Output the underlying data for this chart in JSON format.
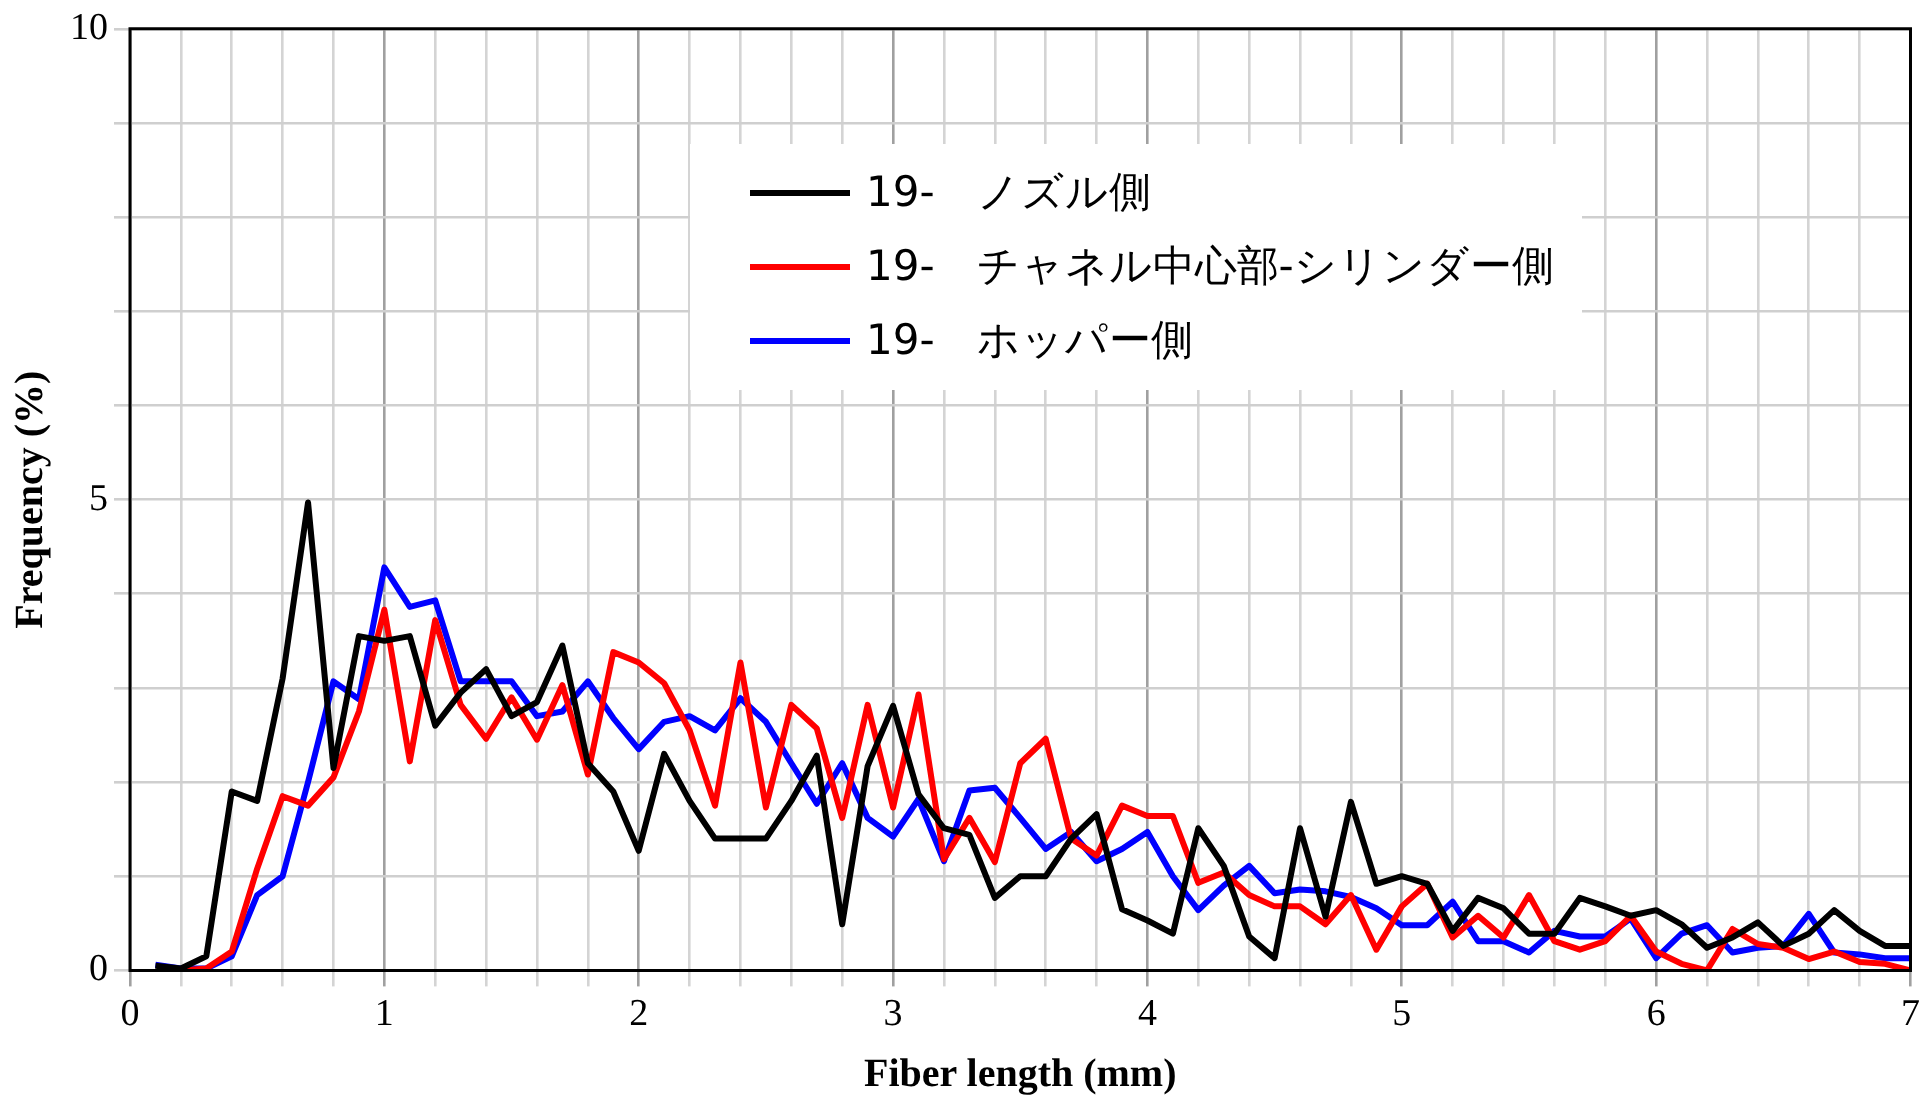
{
  "chart_data": {
    "type": "line",
    "xlabel": "Fiber length (mm)",
    "ylabel": "Frequency (%)",
    "x": [
      0.1,
      0.2,
      0.3,
      0.4,
      0.5,
      0.6,
      0.7,
      0.8,
      0.9,
      1.0,
      1.1,
      1.2,
      1.3,
      1.4,
      1.5,
      1.6,
      1.7,
      1.8,
      1.9,
      2.0,
      2.1,
      2.2,
      2.3,
      2.4,
      2.5,
      2.6,
      2.7,
      2.8,
      2.9,
      3.0,
      3.1,
      3.2,
      3.3,
      3.4,
      3.5,
      3.6,
      3.7,
      3.8,
      3.9,
      4.0,
      4.1,
      4.2,
      4.3,
      4.4,
      4.5,
      4.6,
      4.7,
      4.8,
      4.9,
      5.0,
      5.1,
      5.2,
      5.3,
      5.4,
      5.5,
      5.6,
      5.7,
      5.8,
      5.9,
      6.0,
      6.1,
      6.2,
      6.3,
      6.4,
      6.5,
      6.6,
      6.7,
      6.8,
      6.9,
      7.0
    ],
    "series": [
      {
        "name": "19-　ノズル側",
        "color": "#000000",
        "values": [
          0.05,
          0.02,
          0.15,
          1.9,
          1.8,
          3.1,
          4.97,
          2.15,
          3.55,
          3.5,
          3.55,
          2.6,
          2.95,
          3.2,
          2.7,
          2.85,
          3.45,
          2.2,
          1.9,
          1.27,
          2.3,
          1.8,
          1.4,
          1.4,
          1.4,
          1.8,
          2.28,
          0.49,
          2.17,
          2.81,
          1.87,
          1.51,
          1.44,
          0.77,
          1.0,
          1.0,
          1.4,
          1.66,
          0.65,
          0.53,
          0.39,
          1.51,
          1.11,
          0.36,
          0.13,
          1.51,
          0.57,
          1.79,
          0.92,
          1.0,
          0.92,
          0.42,
          0.77,
          0.66,
          0.39,
          0.39,
          0.77,
          0.68,
          0.58,
          0.64,
          0.49,
          0.24,
          0.35,
          0.51,
          0.26,
          0.39,
          0.64,
          0.42,
          0.26,
          0.26
        ]
      },
      {
        "name": "19-　チャネル中心部-シリンダー側",
        "color": "#ff0000",
        "values": [
          null,
          0.0,
          0.02,
          0.2,
          1.08,
          1.85,
          1.75,
          2.05,
          2.75,
          3.83,
          2.22,
          3.72,
          2.82,
          2.46,
          2.9,
          2.45,
          3.03,
          2.08,
          3.38,
          3.27,
          3.05,
          2.55,
          1.75,
          3.27,
          1.73,
          2.82,
          2.57,
          1.62,
          2.82,
          1.73,
          2.93,
          1.18,
          1.62,
          1.15,
          2.2,
          2.46,
          1.4,
          1.22,
          1.75,
          1.64,
          1.64,
          0.93,
          1.04,
          0.8,
          0.68,
          0.68,
          0.49,
          0.8,
          0.22,
          0.68,
          0.92,
          0.35,
          0.58,
          0.35,
          0.8,
          0.31,
          0.22,
          0.31,
          0.58,
          0.2,
          0.07,
          0.0,
          0.44,
          0.28,
          0.24,
          0.12,
          0.2,
          0.09,
          0.07,
          0.0
        ]
      },
      {
        "name": "19-　ホッパー側",
        "color": "#0000ff",
        "values": [
          0.06,
          0.02,
          0.02,
          0.15,
          0.8,
          1.0,
          2.0,
          3.07,
          2.88,
          4.28,
          3.86,
          3.93,
          3.07,
          3.07,
          3.07,
          2.7,
          2.75,
          3.07,
          2.68,
          2.35,
          2.64,
          2.7,
          2.55,
          2.89,
          2.64,
          2.2,
          1.77,
          2.2,
          1.62,
          1.42,
          1.82,
          1.16,
          1.91,
          1.94,
          1.62,
          1.29,
          1.47,
          1.16,
          1.29,
          1.47,
          1.0,
          0.64,
          0.9,
          1.11,
          0.82,
          0.86,
          0.84,
          0.78,
          0.66,
          0.48,
          0.48,
          0.73,
          0.31,
          0.31,
          0.19,
          0.42,
          0.36,
          0.36,
          0.55,
          0.13,
          0.39,
          0.48,
          0.19,
          0.24,
          0.26,
          0.6,
          0.19,
          0.17,
          0.13,
          0.13
        ]
      }
    ],
    "xlim": [
      0,
      7
    ],
    "xticks": [
      0,
      {
        "value": 0.2,
        "label": null
      },
      {
        "value": 0.4,
        "label": null
      },
      {
        "value": 0.6,
        "label": null
      },
      {
        "value": 0.8,
        "label": null
      },
      1,
      {
        "value": 1.2,
        "label": null
      },
      {
        "value": 1.4,
        "label": null
      },
      {
        "value": 1.6,
        "label": null
      },
      {
        "value": 1.8,
        "label": null
      },
      2,
      {
        "value": 2.2,
        "label": null
      },
      {
        "value": 2.4,
        "label": null
      },
      {
        "value": 2.6,
        "label": null
      },
      {
        "value": 2.8,
        "label": null
      },
      3,
      {
        "value": 3.2,
        "label": null
      },
      {
        "value": 3.4,
        "label": null
      },
      {
        "value": 3.6,
        "label": null
      },
      {
        "value": 3.8,
        "label": null
      },
      4,
      {
        "value": 4.2,
        "label": null
      },
      {
        "value": 4.4,
        "label": null
      },
      {
        "value": 4.6,
        "label": null
      },
      {
        "value": 4.8,
        "label": null
      },
      5,
      {
        "value": 5.2,
        "label": null
      },
      {
        "value": 5.4,
        "label": null
      },
      {
        "value": 5.6,
        "label": null
      },
      {
        "value": 5.8,
        "label": null
      },
      6,
      {
        "value": 6.2,
        "label": null
      },
      {
        "value": 6.4,
        "label": null
      },
      {
        "value": 6.6,
        "label": null
      },
      {
        "value": 6.8,
        "label": null
      },
      7
    ],
    "ylim": [
      0,
      10
    ],
    "yticks": [
      0,
      {
        "value": 1,
        "label": null
      },
      {
        "value": 2,
        "label": null
      },
      {
        "value": 3,
        "label": null
      },
      {
        "value": 4,
        "label": null
      },
      5,
      {
        "value": 6,
        "label": null
      },
      {
        "value": 7,
        "label": null
      },
      {
        "value": 8,
        "label": null
      },
      {
        "value": 9,
        "label": null
      },
      10
    ],
    "grid": true,
    "legend": "top right",
    "marker": "none",
    "line_style": "solid"
  }
}
